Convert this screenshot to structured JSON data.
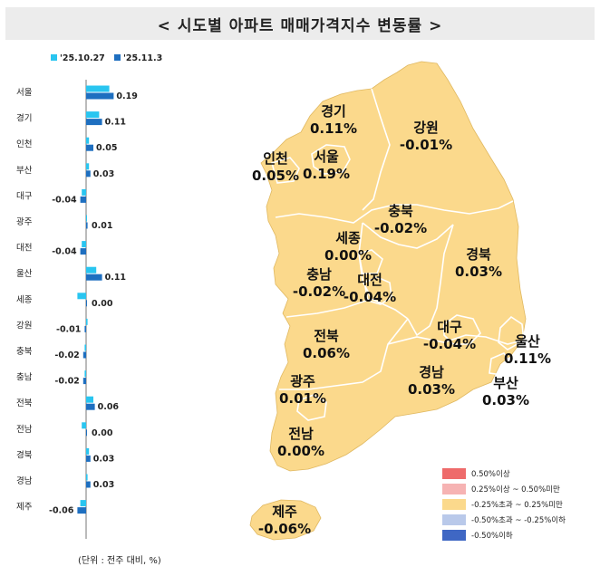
{
  "title": "< 시도별 아파트 매매가격지수 변동률 >",
  "unit_note": "(단위 : 전주 대비, %)",
  "colors": {
    "series1": "#29c5f0",
    "series2": "#1e6fc0",
    "map_fill": "#fbd98c",
    "map_stroke": "#ffffff",
    "title_bg": "#ececec"
  },
  "map_legend": [
    {
      "label": "0.50%이상",
      "color": "#ee6b6b"
    },
    {
      "label": "0.25%이상 ~ 0.50%미만",
      "color": "#f6b3b3"
    },
    {
      "label": "-0.25%초과 ~ 0.25%미만",
      "color": "#fbd98c"
    },
    {
      "label": "-0.50%초과 ~ -0.25%이하",
      "color": "#b9c9ea"
    },
    {
      "label": "-0.50%이하",
      "color": "#3f67c4"
    }
  ],
  "map_labels": [
    {
      "region": "경기",
      "value": "0.11%"
    },
    {
      "region": "강원",
      "value": "-0.01%"
    },
    {
      "region": "인천",
      "value": "0.05%"
    },
    {
      "region": "서울",
      "value": "0.19%"
    },
    {
      "region": "충북",
      "value": "-0.02%"
    },
    {
      "region": "세종",
      "value": "0.00%"
    },
    {
      "region": "경북",
      "value": "0.03%"
    },
    {
      "region": "충남",
      "value": "-0.02%"
    },
    {
      "region": "대전",
      "value": "-0.04%"
    },
    {
      "region": "전북",
      "value": "0.06%"
    },
    {
      "region": "대구",
      "value": "-0.04%"
    },
    {
      "region": "울산",
      "value": "0.11%"
    },
    {
      "region": "광주",
      "value": "0.01%"
    },
    {
      "region": "경남",
      "value": "0.03%"
    },
    {
      "region": "부산",
      "value": "0.03%"
    },
    {
      "region": "전남",
      "value": "0.00%"
    },
    {
      "region": "제주",
      "value": "-0.06%"
    }
  ],
  "chart_data": {
    "type": "bar",
    "orientation": "horizontal",
    "categories": [
      "서울",
      "경기",
      "인천",
      "부산",
      "대구",
      "광주",
      "대전",
      "울산",
      "세종",
      "강원",
      "충북",
      "충남",
      "전북",
      "전남",
      "경북",
      "경남",
      "제주"
    ],
    "series": [
      {
        "name": "'25.10.27",
        "values": [
          0.16,
          0.09,
          0.02,
          0.02,
          -0.03,
          0.0,
          -0.03,
          0.07,
          -0.06,
          0.01,
          -0.01,
          -0.01,
          0.05,
          -0.03,
          0.02,
          0.01,
          -0.04
        ]
      },
      {
        "name": "'25.11.3",
        "values": [
          0.19,
          0.11,
          0.05,
          0.03,
          -0.04,
          0.01,
          -0.04,
          0.11,
          0.0,
          -0.01,
          -0.02,
          -0.02,
          0.06,
          0.0,
          0.03,
          0.03,
          -0.06
        ]
      }
    ],
    "value_labels": [
      "0.19",
      "0.11",
      "0.05",
      "0.03",
      "-0.04",
      "0.01",
      "-0.04",
      "0.11",
      "0.00",
      "-0.01",
      "-0.02",
      "-0.02",
      "0.06",
      "0.00",
      "0.03",
      "0.03",
      "-0.06"
    ],
    "legend_position": "top"
  }
}
